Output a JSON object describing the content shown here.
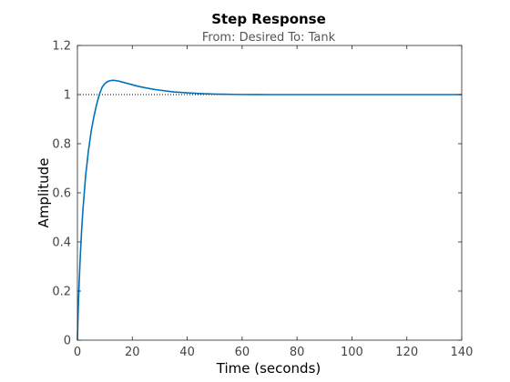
{
  "chart_data": {
    "type": "line",
    "title": "Step Response",
    "subtitle": "From: Desired  To: Tank",
    "xlabel": "Time (seconds)",
    "ylabel": "Amplitude",
    "xlim": [
      0,
      140
    ],
    "ylim": [
      0,
      1.2
    ],
    "xticks": [
      0,
      20,
      40,
      60,
      80,
      100,
      120,
      140
    ],
    "yticks": [
      0,
      0.2,
      0.4,
      0.6,
      0.8,
      1,
      1.2
    ],
    "grid": false,
    "reference_line": {
      "y": 1,
      "style": "dotted"
    },
    "colors": {
      "series": "#0072bd",
      "reference": "#000000",
      "axes": "#262626"
    },
    "series": [
      {
        "x": [
          0,
          0.3,
          0.7,
          1,
          1.5,
          2,
          2.5,
          3,
          3.5,
          4,
          5,
          6,
          7,
          8,
          9,
          10,
          11,
          12,
          13,
          14,
          15,
          16,
          18,
          20,
          22,
          25,
          28,
          30,
          35,
          40,
          45,
          50,
          55,
          60,
          65,
          70,
          80,
          90,
          100,
          110,
          120,
          130,
          140
        ],
        "y": [
          0,
          0.13,
          0.25,
          0.33,
          0.44,
          0.53,
          0.6,
          0.67,
          0.72,
          0.77,
          0.85,
          0.91,
          0.96,
          1.0,
          1.03,
          1.045,
          1.053,
          1.057,
          1.058,
          1.057,
          1.055,
          1.052,
          1.046,
          1.04,
          1.034,
          1.027,
          1.021,
          1.018,
          1.011,
          1.007,
          1.004,
          1.002,
          1.001,
          1.0005,
          1.0002,
          1.0,
          1.0,
          1.0,
          1.0,
          1.0,
          1.0,
          1.0,
          1.0
        ]
      }
    ]
  }
}
